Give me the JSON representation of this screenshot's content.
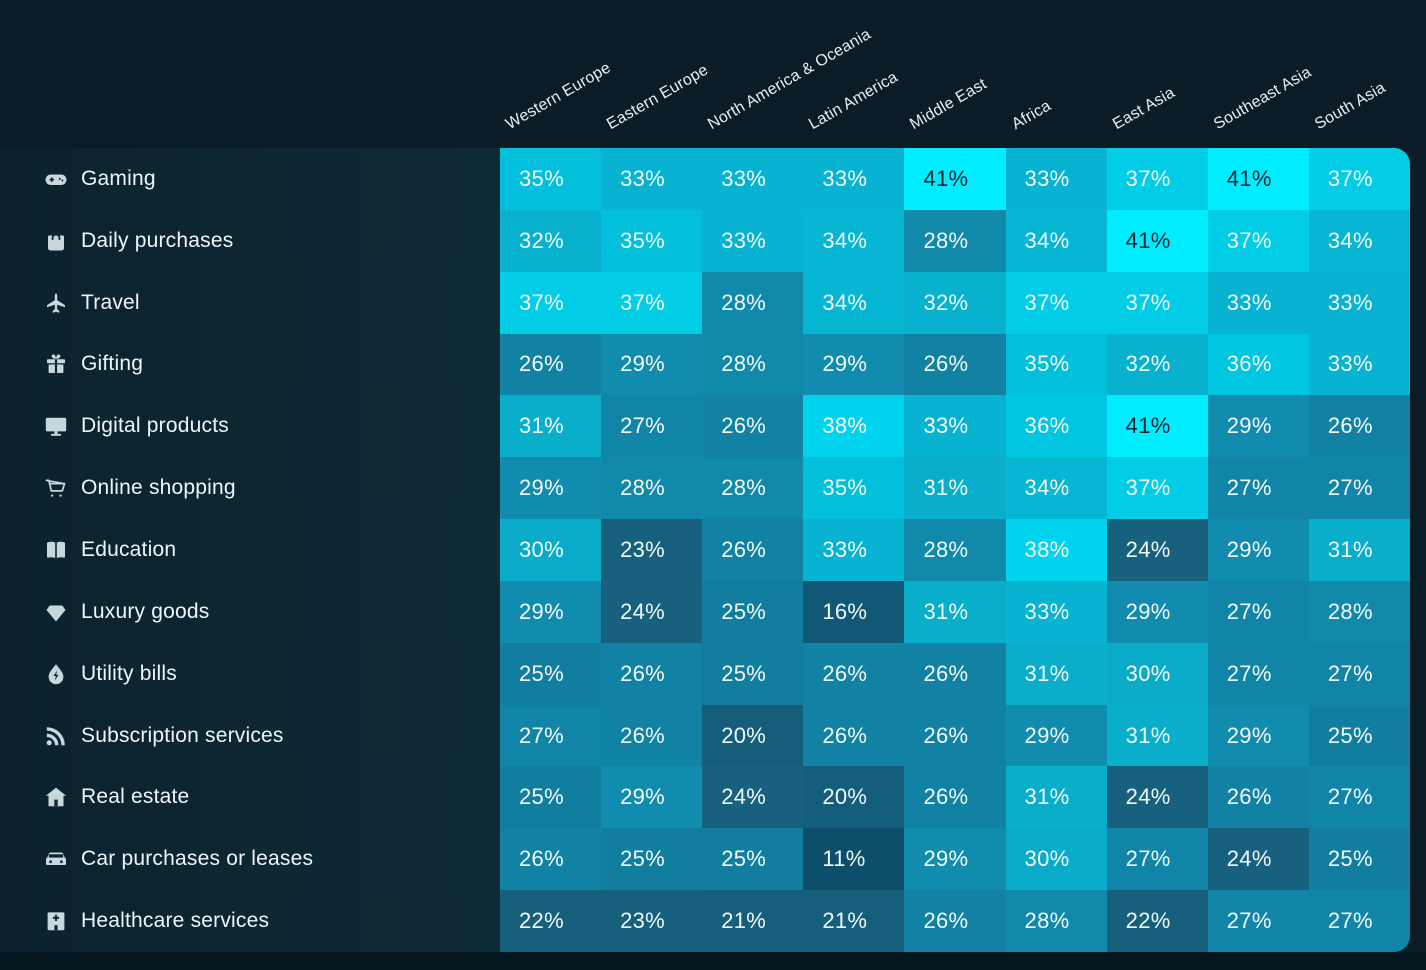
{
  "palette": {
    "background": "#0a1d27",
    "label_band": "#0d2733",
    "bottom_strip": "#04161e",
    "cell_text_light": "#f2fafb",
    "cell_text_dark": "#0a2731",
    "row_label_color": "#edf6f8",
    "row_icon_color": "#c7d7dd",
    "column_header_color": "#e2f0f4"
  },
  "chart_data": {
    "type": "heatmap",
    "unit": "%",
    "legend": "none",
    "grid": false,
    "columns": [
      "Western Europe",
      "Eastern Europe",
      "North America & Oceania",
      "Latin America",
      "Middle East",
      "Africa",
      "East Asia",
      "Southeast Asia",
      "South Asia"
    ],
    "rows": [
      {
        "label": "Gaming",
        "icon": "gamepad-icon",
        "values": [
          35,
          33,
          33,
          33,
          41,
          33,
          37,
          41,
          37
        ]
      },
      {
        "label": "Daily purchases",
        "icon": "shopping-bag-icon",
        "values": [
          32,
          35,
          33,
          34,
          28,
          34,
          41,
          37,
          34
        ]
      },
      {
        "label": "Travel",
        "icon": "airplane-icon",
        "values": [
          37,
          37,
          28,
          34,
          32,
          37,
          37,
          33,
          33
        ]
      },
      {
        "label": "Gifting",
        "icon": "gift-icon",
        "values": [
          26,
          29,
          28,
          29,
          26,
          35,
          32,
          36,
          33
        ]
      },
      {
        "label": "Digital products",
        "icon": "monitor-icon",
        "values": [
          31,
          27,
          26,
          38,
          33,
          36,
          41,
          29,
          26
        ]
      },
      {
        "label": "Online shopping",
        "icon": "cart-icon",
        "values": [
          29,
          28,
          28,
          35,
          31,
          34,
          37,
          27,
          27
        ]
      },
      {
        "label": "Education",
        "icon": "book-icon",
        "values": [
          30,
          23,
          26,
          33,
          28,
          38,
          24,
          29,
          31
        ]
      },
      {
        "label": "Luxury goods",
        "icon": "diamond-icon",
        "values": [
          29,
          24,
          25,
          16,
          31,
          33,
          29,
          27,
          28
        ]
      },
      {
        "label": "Utility bills",
        "icon": "energy-drop-icon",
        "values": [
          25,
          26,
          25,
          26,
          26,
          31,
          30,
          27,
          27
        ]
      },
      {
        "label": "Subscription services",
        "icon": "rss-icon",
        "values": [
          27,
          26,
          20,
          26,
          26,
          29,
          31,
          29,
          25
        ]
      },
      {
        "label": "Real estate",
        "icon": "house-icon",
        "values": [
          25,
          29,
          24,
          20,
          26,
          31,
          24,
          26,
          27
        ]
      },
      {
        "label": "Car purchases or leases",
        "icon": "car-icon",
        "values": [
          26,
          25,
          25,
          11,
          29,
          30,
          27,
          24,
          25
        ]
      },
      {
        "label": "Healthcare services",
        "icon": "hospital-icon",
        "values": [
          22,
          23,
          21,
          21,
          26,
          28,
          22,
          27,
          27
        ]
      }
    ],
    "color_scale": {
      "min": 11,
      "max": 41,
      "stops": [
        [
          11,
          "#0d4e6a"
        ],
        [
          16,
          "#115877"
        ],
        [
          24,
          "#17617f"
        ],
        [
          25,
          "#117ea0"
        ],
        [
          29,
          "#118cae"
        ],
        [
          30,
          "#0aabc9"
        ],
        [
          34,
          "#06b6d2"
        ],
        [
          35,
          "#02c0dc"
        ],
        [
          38,
          "#00d3ed"
        ],
        [
          41,
          "#00ecff"
        ]
      ],
      "dark_text_min": 40
    }
  }
}
